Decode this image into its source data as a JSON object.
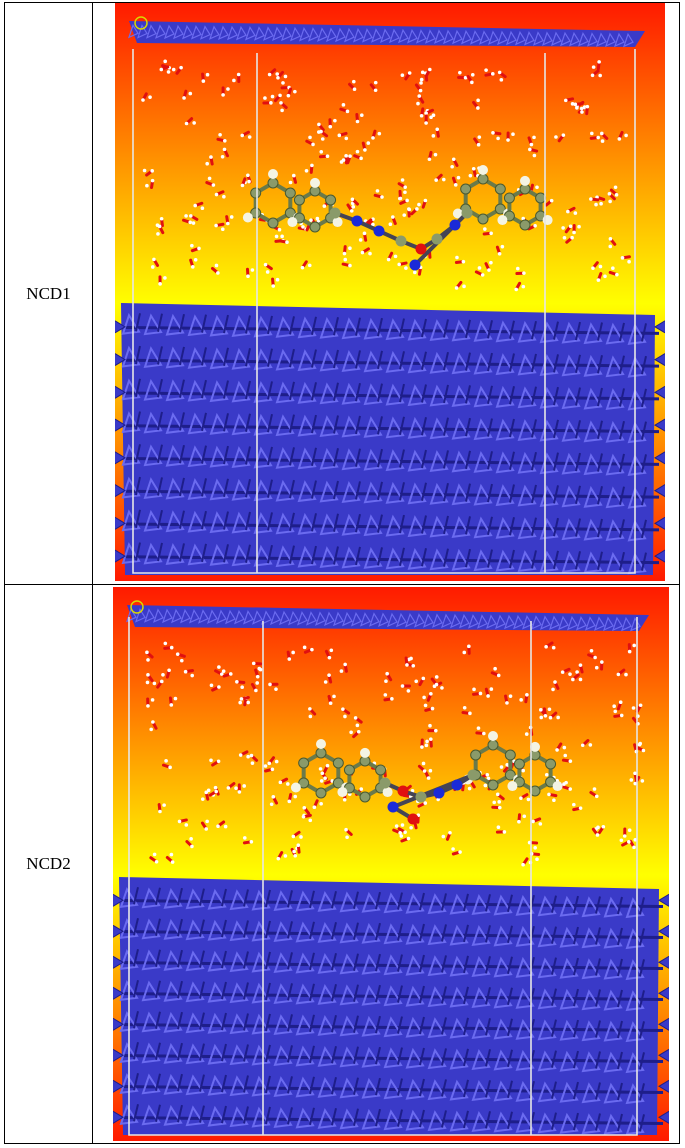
{
  "rows": [
    {
      "label": "NCD1"
    },
    {
      "label": "NCD2"
    }
  ],
  "colors": {
    "slab": "#3a3ac8",
    "slab_dark": "#1e1e8a",
    "slab_light": "#6b6bf0",
    "bg_top": "#ff1a00",
    "bg_mid": "#ffff00",
    "oxygen": "#e01010",
    "hydrogen": "#ffffff",
    "carbon": "#8a9a6a",
    "nitrogen": "#1a2ad8"
  }
}
